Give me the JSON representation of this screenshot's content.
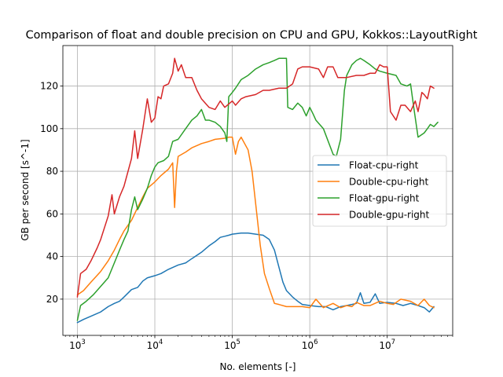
{
  "chart_data": {
    "type": "line",
    "title": "Comparison of float and double precision on CPU and GPU, Kokkos::LayoutRight",
    "xlabel": "No. elements [-]",
    "ylabel": "GB per second [s^-1]",
    "xscale": "log",
    "xlim": [
      650,
      70000000
    ],
    "ylim": [
      3,
      139
    ],
    "grid": true,
    "legend_placement": "center-right",
    "x_ticks": [
      {
        "value": 1000,
        "base": "10",
        "exp": "3"
      },
      {
        "value": 10000,
        "base": "10",
        "exp": "4"
      },
      {
        "value": 100000,
        "base": "10",
        "exp": "5"
      },
      {
        "value": 1000000,
        "base": "10",
        "exp": "6"
      },
      {
        "value": 10000000,
        "base": "10",
        "exp": "7"
      }
    ],
    "y_ticks": [
      20,
      40,
      60,
      80,
      100,
      120
    ],
    "series": [
      {
        "name": "Float-cpu-right",
        "color": "#1f77b4",
        "points": [
          [
            1000,
            9
          ],
          [
            1200,
            10.5
          ],
          [
            1500,
            12
          ],
          [
            2000,
            14
          ],
          [
            2500,
            16.5
          ],
          [
            3000,
            18
          ],
          [
            3500,
            19
          ],
          [
            4000,
            21
          ],
          [
            5000,
            24.5
          ],
          [
            6000,
            25.5
          ],
          [
            7000,
            28.5
          ],
          [
            8000,
            30
          ],
          [
            10000,
            31
          ],
          [
            12000,
            32
          ],
          [
            15000,
            34
          ],
          [
            20000,
            36
          ],
          [
            25000,
            37
          ],
          [
            30000,
            39
          ],
          [
            40000,
            42
          ],
          [
            50000,
            45
          ],
          [
            60000,
            47
          ],
          [
            70000,
            49
          ],
          [
            80000,
            49.5
          ],
          [
            90000,
            50
          ],
          [
            100000,
            50.5
          ],
          [
            130000,
            51
          ],
          [
            160000,
            51
          ],
          [
            200000,
            50.5
          ],
          [
            250000,
            50
          ],
          [
            300000,
            48
          ],
          [
            350000,
            43
          ],
          [
            400000,
            35
          ],
          [
            450000,
            28
          ],
          [
            500000,
            24
          ],
          [
            600000,
            21
          ],
          [
            700000,
            19
          ],
          [
            800000,
            17.5
          ],
          [
            1000000,
            17
          ],
          [
            1300000,
            16.5
          ],
          [
            1600000,
            16.5
          ],
          [
            2000000,
            15
          ],
          [
            2500000,
            16.5
          ],
          [
            3000000,
            17
          ],
          [
            3500000,
            17.5
          ],
          [
            4000000,
            18
          ],
          [
            4500000,
            23
          ],
          [
            5000000,
            18
          ],
          [
            6000000,
            18.5
          ],
          [
            7000000,
            22.5
          ],
          [
            8000000,
            18
          ],
          [
            10000000,
            18.5
          ],
          [
            13000000,
            18
          ],
          [
            16000000,
            17
          ],
          [
            20000000,
            18
          ],
          [
            25000000,
            17
          ],
          [
            30000000,
            16
          ],
          [
            35000000,
            14
          ],
          [
            40000000,
            16.5
          ]
        ]
      },
      {
        "name": "Double-cpu-right",
        "color": "#ff7f0e",
        "points": [
          [
            1000,
            22
          ],
          [
            1200,
            24
          ],
          [
            1500,
            28
          ],
          [
            2000,
            33
          ],
          [
            2500,
            38
          ],
          [
            3000,
            43
          ],
          [
            3500,
            48
          ],
          [
            4000,
            52
          ],
          [
            5000,
            57
          ],
          [
            6000,
            63
          ],
          [
            7000,
            68
          ],
          [
            8000,
            72
          ],
          [
            10000,
            75
          ],
          [
            12000,
            78
          ],
          [
            15000,
            81
          ],
          [
            17000,
            84
          ],
          [
            18000,
            63
          ],
          [
            19000,
            80
          ],
          [
            20000,
            87
          ],
          [
            25000,
            89
          ],
          [
            30000,
            91
          ],
          [
            40000,
            93
          ],
          [
            50000,
            94
          ],
          [
            60000,
            95
          ],
          [
            80000,
            95.5
          ],
          [
            90000,
            96
          ],
          [
            100000,
            96
          ],
          [
            110000,
            88
          ],
          [
            120000,
            94
          ],
          [
            130000,
            96
          ],
          [
            160000,
            90
          ],
          [
            180000,
            80
          ],
          [
            200000,
            65
          ],
          [
            230000,
            45
          ],
          [
            260000,
            32
          ],
          [
            300000,
            25
          ],
          [
            350000,
            18
          ],
          [
            400000,
            17.5
          ],
          [
            500000,
            16.5
          ],
          [
            600000,
            16.5
          ],
          [
            700000,
            16.5
          ],
          [
            800000,
            16.5
          ],
          [
            1000000,
            16
          ],
          [
            1200000,
            20
          ],
          [
            1500000,
            16
          ],
          [
            2000000,
            18
          ],
          [
            2500000,
            16
          ],
          [
            3000000,
            17
          ],
          [
            3500000,
            16.5
          ],
          [
            4000000,
            18.5
          ],
          [
            5000000,
            17
          ],
          [
            6000000,
            17
          ],
          [
            8000000,
            19
          ],
          [
            10000000,
            18
          ],
          [
            12000000,
            17.5
          ],
          [
            15000000,
            20
          ],
          [
            20000000,
            19
          ],
          [
            25000000,
            17
          ],
          [
            30000000,
            20
          ],
          [
            35000000,
            17
          ],
          [
            40000000,
            16
          ]
        ]
      },
      {
        "name": "Float-gpu-right",
        "color": "#2ca02c",
        "points": [
          [
            1000,
            10
          ],
          [
            1100,
            17
          ],
          [
            1300,
            19
          ],
          [
            1600,
            22
          ],
          [
            2000,
            26
          ],
          [
            2500,
            30
          ],
          [
            3000,
            37
          ],
          [
            3500,
            43
          ],
          [
            4000,
            48
          ],
          [
            4500,
            52
          ],
          [
            5000,
            62
          ],
          [
            5500,
            68
          ],
          [
            6000,
            62
          ],
          [
            7000,
            67
          ],
          [
            8000,
            72
          ],
          [
            9000,
            78
          ],
          [
            10000,
            82
          ],
          [
            11000,
            84
          ],
          [
            13000,
            85
          ],
          [
            15000,
            87
          ],
          [
            17000,
            94
          ],
          [
            20000,
            95
          ],
          [
            25000,
            100
          ],
          [
            30000,
            104
          ],
          [
            35000,
            106
          ],
          [
            40000,
            109
          ],
          [
            45000,
            104
          ],
          [
            50000,
            104
          ],
          [
            60000,
            103
          ],
          [
            70000,
            101
          ],
          [
            80000,
            98
          ],
          [
            85000,
            94
          ],
          [
            90000,
            115
          ],
          [
            100000,
            117
          ],
          [
            110000,
            119
          ],
          [
            130000,
            123
          ],
          [
            160000,
            125
          ],
          [
            200000,
            128
          ],
          [
            250000,
            130
          ],
          [
            300000,
            131
          ],
          [
            350000,
            132
          ],
          [
            400000,
            133
          ],
          [
            500000,
            133
          ],
          [
            520000,
            110
          ],
          [
            600000,
            109
          ],
          [
            700000,
            112
          ],
          [
            800000,
            110
          ],
          [
            900000,
            106
          ],
          [
            1000000,
            110
          ],
          [
            1100000,
            107
          ],
          [
            1200000,
            104
          ],
          [
            1500000,
            100
          ],
          [
            2000000,
            88
          ],
          [
            2200000,
            87
          ],
          [
            2500000,
            95
          ],
          [
            2800000,
            118
          ],
          [
            3000000,
            125
          ],
          [
            3500000,
            130
          ],
          [
            4000000,
            132
          ],
          [
            4500000,
            133
          ],
          [
            5000000,
            132
          ],
          [
            6000000,
            130
          ],
          [
            7000000,
            128
          ],
          [
            8000000,
            127
          ],
          [
            10000000,
            126
          ],
          [
            13000000,
            125
          ],
          [
            15000000,
            121
          ],
          [
            18000000,
            120
          ],
          [
            20000000,
            121
          ],
          [
            22000000,
            110
          ],
          [
            25000000,
            96
          ],
          [
            30000000,
            98
          ],
          [
            33000000,
            100
          ],
          [
            36000000,
            102
          ],
          [
            40000000,
            101
          ],
          [
            45000000,
            103
          ]
        ]
      },
      {
        "name": "Double-gpu-right",
        "color": "#d62728",
        "points": [
          [
            1000,
            21
          ],
          [
            1100,
            32
          ],
          [
            1300,
            34
          ],
          [
            1500,
            38
          ],
          [
            1800,
            44
          ],
          [
            2000,
            48
          ],
          [
            2500,
            59
          ],
          [
            2800,
            69
          ],
          [
            3000,
            60
          ],
          [
            3500,
            68
          ],
          [
            4000,
            73
          ],
          [
            5000,
            86
          ],
          [
            5500,
            99
          ],
          [
            6000,
            86
          ],
          [
            7000,
            100
          ],
          [
            8000,
            114
          ],
          [
            9000,
            103
          ],
          [
            10000,
            105
          ],
          [
            11000,
            115
          ],
          [
            12000,
            114
          ],
          [
            13000,
            120
          ],
          [
            15000,
            121
          ],
          [
            17000,
            126
          ],
          [
            18000,
            133
          ],
          [
            20000,
            127
          ],
          [
            22000,
            130
          ],
          [
            25000,
            124
          ],
          [
            30000,
            124
          ],
          [
            35000,
            118
          ],
          [
            40000,
            114
          ],
          [
            50000,
            110
          ],
          [
            60000,
            109
          ],
          [
            70000,
            113
          ],
          [
            80000,
            110
          ],
          [
            100000,
            113
          ],
          [
            110000,
            111
          ],
          [
            130000,
            114
          ],
          [
            150000,
            115
          ],
          [
            200000,
            116
          ],
          [
            250000,
            118
          ],
          [
            300000,
            118
          ],
          [
            400000,
            119
          ],
          [
            500000,
            119
          ],
          [
            600000,
            121
          ],
          [
            700000,
            128
          ],
          [
            800000,
            129
          ],
          [
            1000000,
            129
          ],
          [
            1300000,
            128
          ],
          [
            1500000,
            124
          ],
          [
            1700000,
            129
          ],
          [
            2000000,
            129
          ],
          [
            2300000,
            124
          ],
          [
            3000000,
            124
          ],
          [
            4000000,
            125
          ],
          [
            5000000,
            125
          ],
          [
            6000000,
            126
          ],
          [
            7000000,
            126
          ],
          [
            8000000,
            130
          ],
          [
            9000000,
            129
          ],
          [
            10000000,
            129
          ],
          [
            11000000,
            108
          ],
          [
            13000000,
            104
          ],
          [
            15000000,
            111
          ],
          [
            17000000,
            111
          ],
          [
            20000000,
            108
          ],
          [
            23000000,
            113
          ],
          [
            25000000,
            108
          ],
          [
            28000000,
            117
          ],
          [
            30000000,
            116
          ],
          [
            33000000,
            114
          ],
          [
            36000000,
            120
          ],
          [
            40000000,
            119
          ]
        ]
      }
    ]
  }
}
